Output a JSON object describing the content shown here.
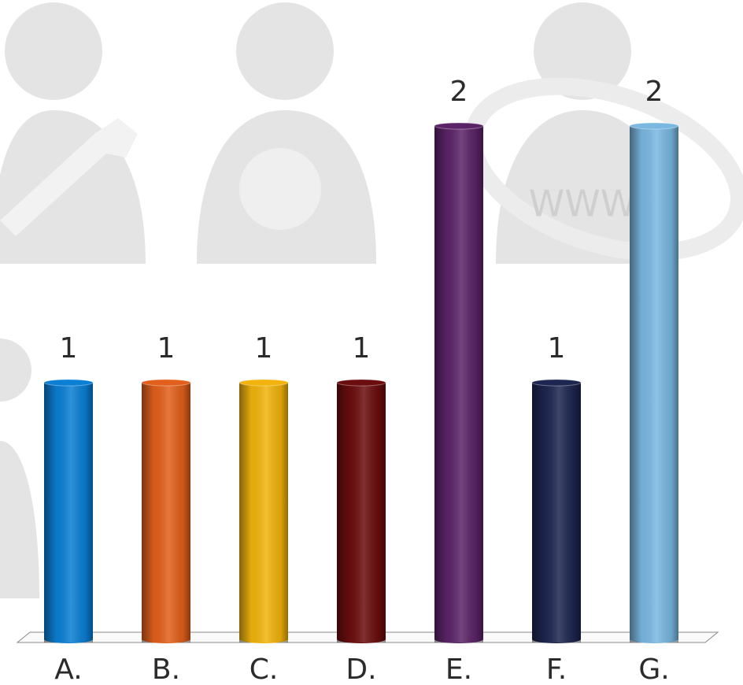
{
  "chart_data": {
    "type": "bar",
    "categories": [
      "A.",
      "B.",
      "C.",
      "D.",
      "E.",
      "F.",
      "G."
    ],
    "values": [
      1,
      1,
      1,
      1,
      2,
      1,
      2
    ],
    "colors": [
      "#0a7fd4",
      "#e2601b",
      "#f2b40c",
      "#6b0d0e",
      "#5b2468",
      "#1d2650",
      "#7ab8e2"
    ],
    "annotations": [
      "WWW"
    ]
  }
}
